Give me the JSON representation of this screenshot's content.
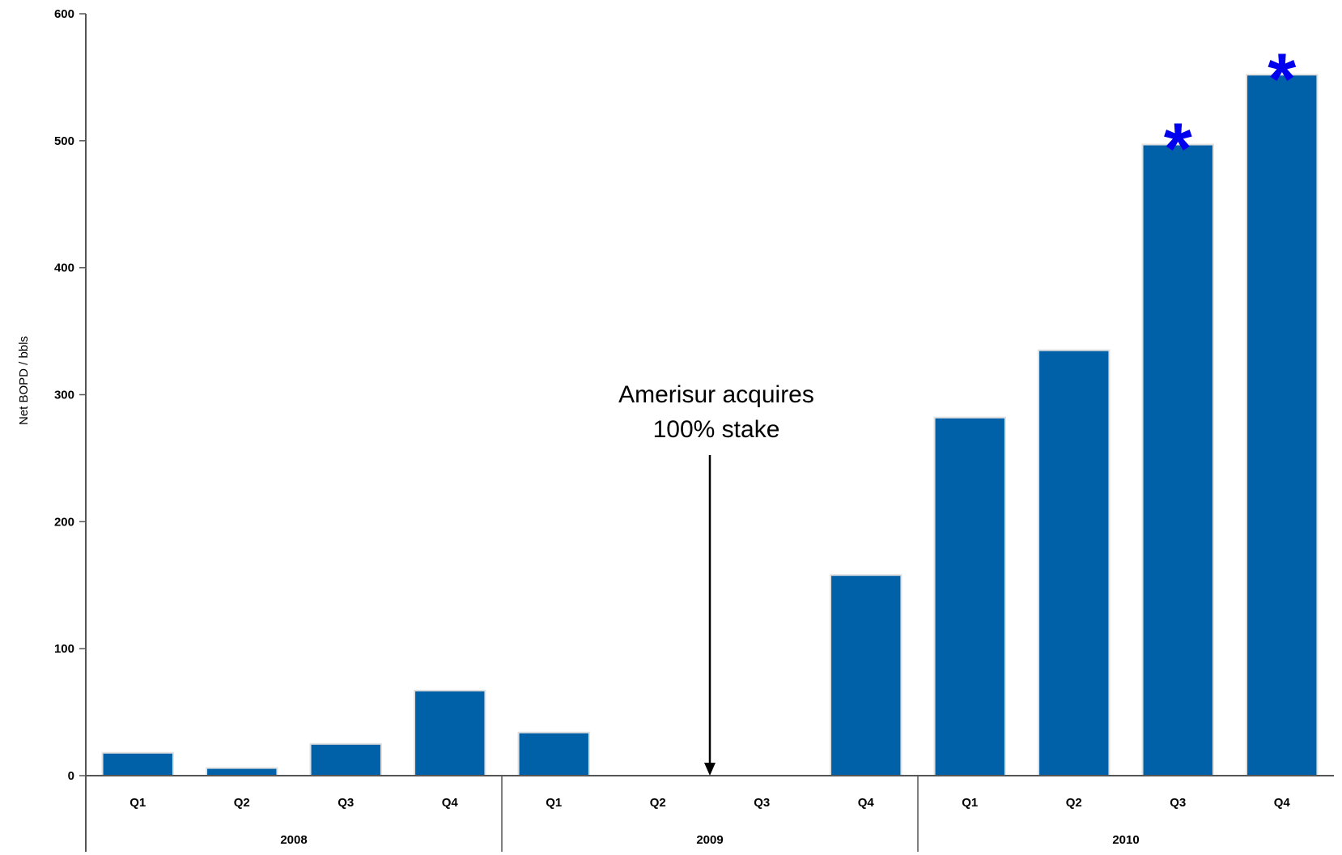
{
  "chart_data": {
    "type": "bar",
    "title": "",
    "xlabel": "",
    "ylabel": "Net BOPD / bbls",
    "ylim": [
      0,
      600
    ],
    "yticks": [
      0,
      100,
      200,
      300,
      400,
      500,
      600
    ],
    "yticks_text": [
      "0",
      "100",
      "200",
      "300",
      "400",
      "500",
      "600"
    ],
    "grid": false,
    "categories": [
      "Q1",
      "Q2",
      "Q3",
      "Q4",
      "Q1",
      "Q2",
      "Q3",
      "Q4",
      "Q1",
      "Q2",
      "Q3",
      "Q4"
    ],
    "groups": [
      {
        "label": "2008",
        "size": 4
      },
      {
        "label": "2009",
        "size": 4
      },
      {
        "label": "2010",
        "size": 4
      }
    ],
    "values": [
      18,
      6,
      25,
      67,
      34,
      0,
      0,
      158,
      282,
      335,
      497,
      552
    ],
    "bar_color": "#0060A8",
    "marked_bars": [
      10,
      11
    ],
    "marker_text": "*",
    "marker_color": "#0000EE",
    "annotation": {
      "lines": [
        "Amerisur acquires",
        "100% stake"
      ],
      "at_category_boundary": 6
    }
  }
}
